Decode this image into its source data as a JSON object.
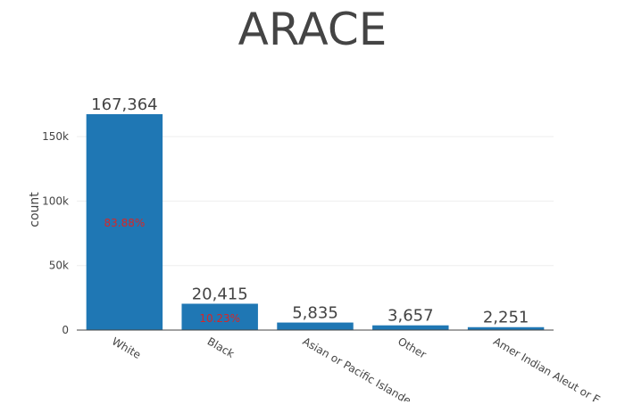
{
  "chart_data": {
    "type": "bar",
    "title": "ARACE",
    "ylabel": "count",
    "xlabel": "",
    "categories": [
      "White",
      "Black",
      "Asian or Pacific Islande",
      "Other",
      "Amer Indian Aleut or E"
    ],
    "values": [
      167364,
      20415,
      5835,
      3657,
      2251
    ],
    "value_labels": [
      "167,364",
      "20,415",
      "5,835",
      "3,657",
      "2,251"
    ],
    "percent_labels": [
      "83.88%",
      "10.23%",
      "",
      "",
      ""
    ],
    "y_ticks": [
      0,
      50000,
      100000,
      150000
    ],
    "y_tick_labels": [
      "0",
      "50k",
      "100k",
      "150k"
    ],
    "ylim": [
      0,
      167364
    ],
    "grid": true,
    "legend": "none",
    "colors": {
      "bar": "#1f77b4",
      "percent_label": "#d62728",
      "title": "#444444",
      "text": "#444444",
      "grid": "#eeeeee",
      "axis": "#444444"
    }
  }
}
